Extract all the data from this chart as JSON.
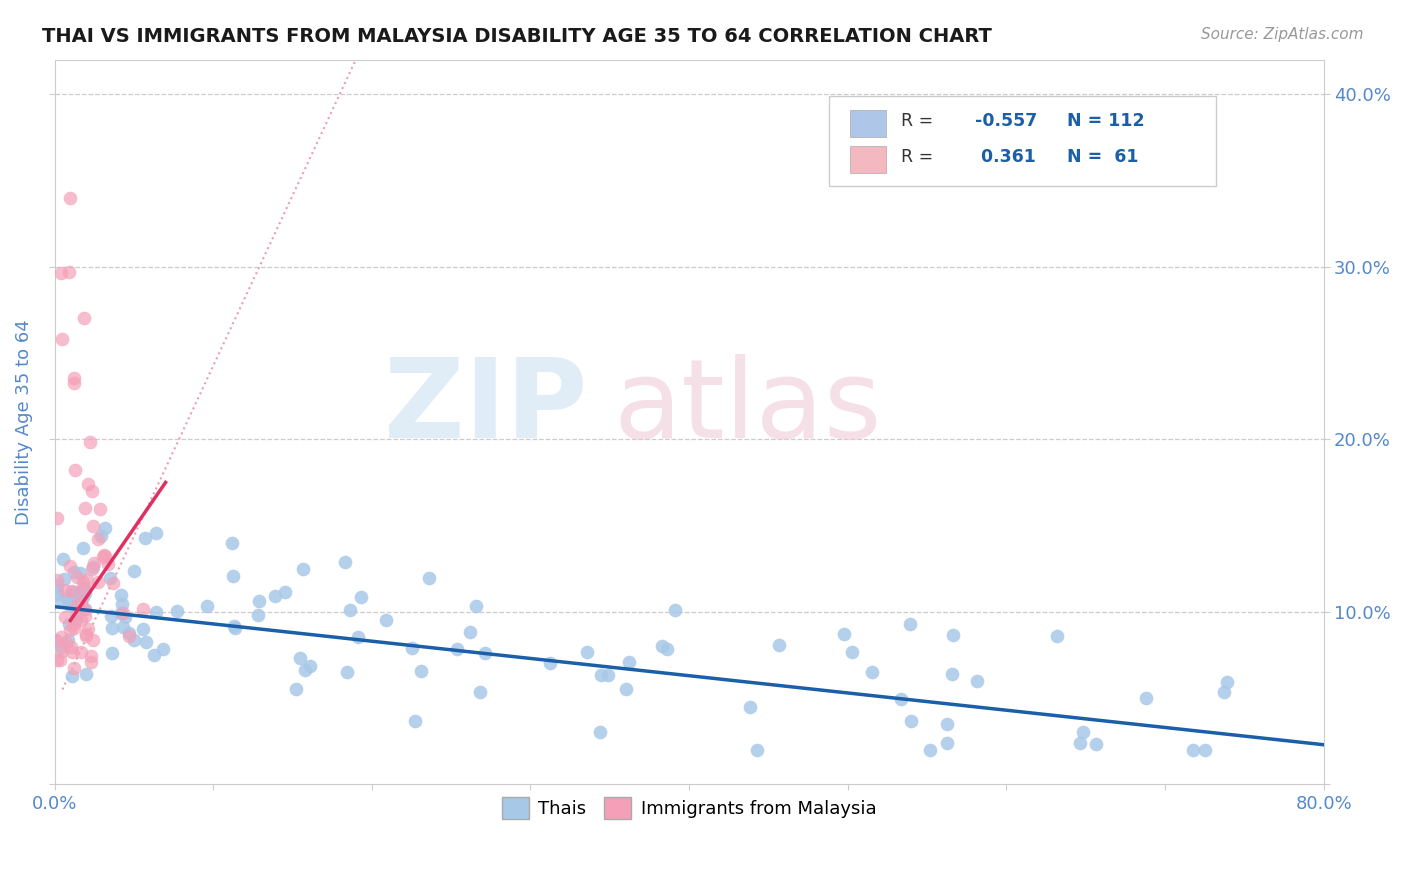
{
  "title": "THAI VS IMMIGRANTS FROM MALAYSIA DISABILITY AGE 35 TO 64 CORRELATION CHART",
  "source": "Source: ZipAtlas.com",
  "ylabel": "Disability Age 35 to 64",
  "xlim": [
    0.0,
    0.8
  ],
  "ylim": [
    0.0,
    0.42
  ],
  "xticks": [
    0.0,
    0.1,
    0.2,
    0.3,
    0.4,
    0.5,
    0.6,
    0.7,
    0.8
  ],
  "yticks": [
    0.0,
    0.1,
    0.2,
    0.3,
    0.4
  ],
  "ytick_labels_right": [
    "",
    "10.0%",
    "20.0%",
    "30.0%",
    "40.0%"
  ],
  "xtick_labels": [
    "0.0%",
    "",
    "",
    "",
    "",
    "",
    "",
    "",
    "80.0%"
  ],
  "thai_color": "#a8c8e8",
  "malay_color": "#f4a0b8",
  "thai_trend_color": "#1a5fa8",
  "malay_trend_color": "#e03060",
  "malay_dash_color": "#f4a0b8",
  "thai_R": -0.557,
  "thai_N": 112,
  "malay_R": 0.361,
  "malay_N": 61,
  "background_color": "#ffffff",
  "grid_color": "#cccccc",
  "title_color": "#1a1a1a",
  "tick_label_color": "#5588cc",
  "legend_box_color": "#aec6e8",
  "legend_box_color2": "#f4b8c1"
}
